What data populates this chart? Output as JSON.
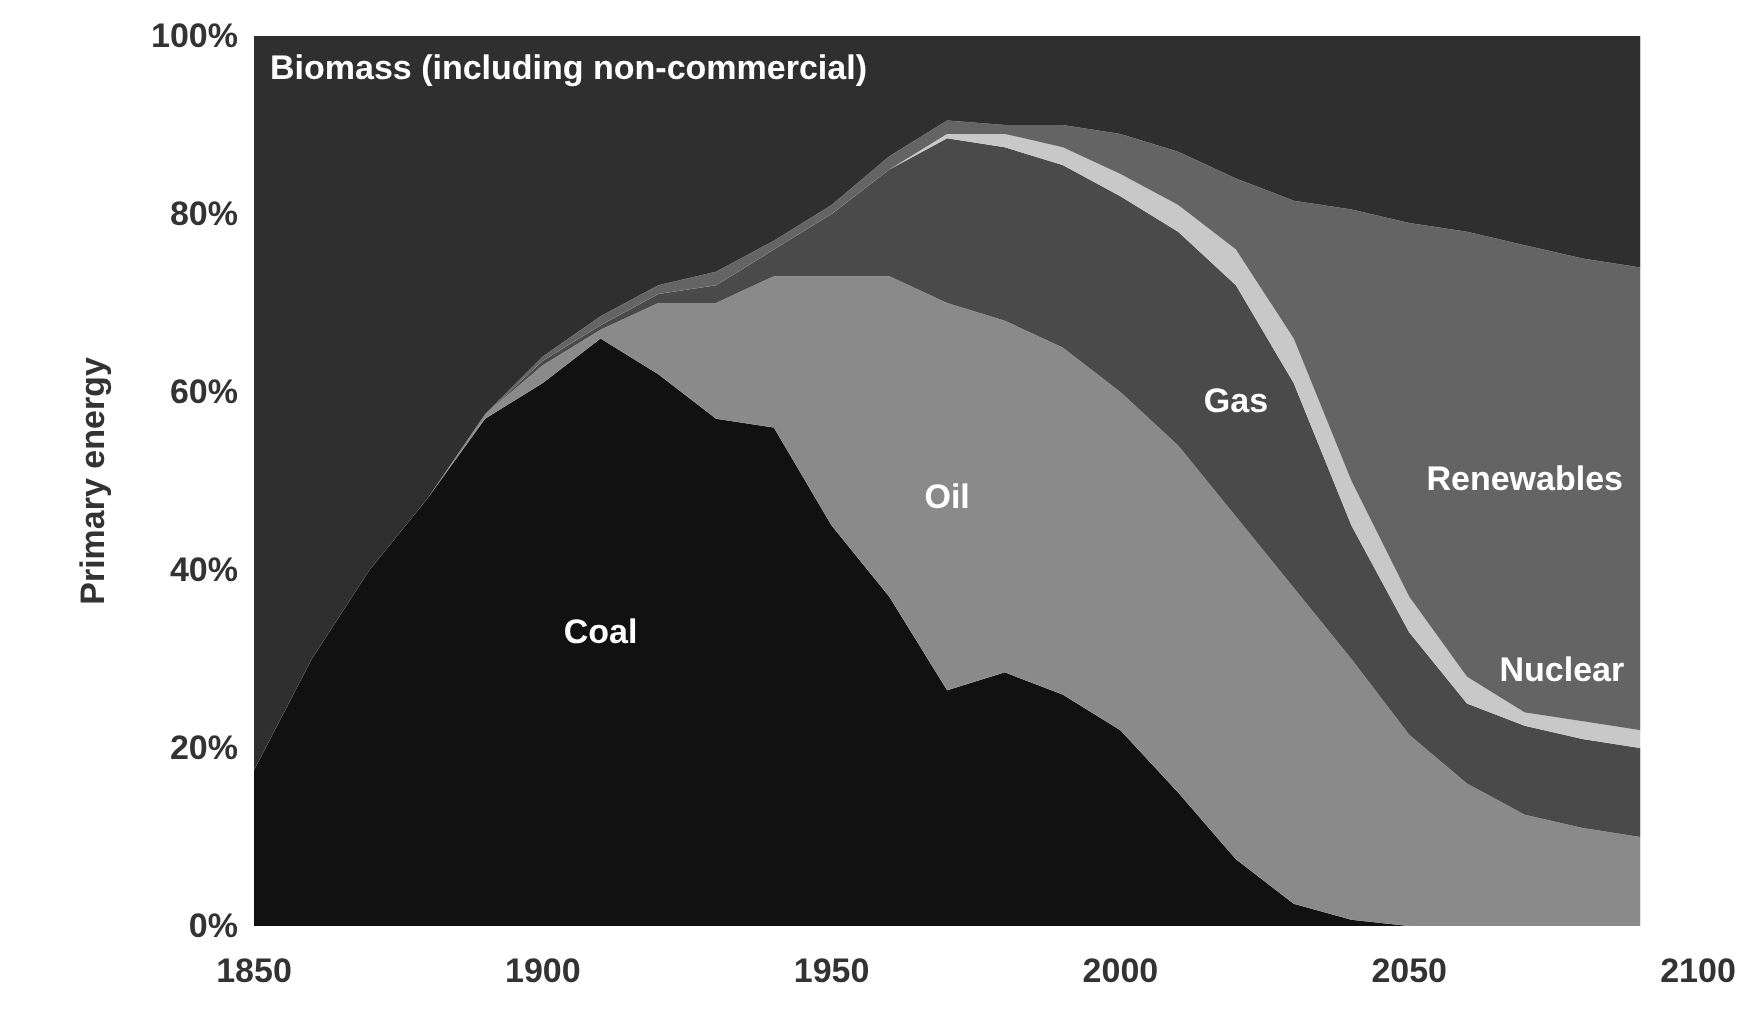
{
  "chart_data": {
    "type": "area",
    "stacked": true,
    "ylabel": "Primary energy",
    "x": [
      1850,
      1860,
      1870,
      1880,
      1890,
      1900,
      1910,
      1920,
      1930,
      1940,
      1950,
      1960,
      1970,
      1980,
      1990,
      2000,
      2010,
      2020,
      2030,
      2040,
      2050,
      2060,
      2070,
      2080,
      2090
    ],
    "xlim": [
      1850,
      2100
    ],
    "xticks": [
      1850,
      1900,
      1950,
      2000,
      2050,
      2100
    ],
    "ylim": [
      0,
      100
    ],
    "yticks": [
      {
        "value": 0,
        "label": "0%"
      },
      {
        "value": 20,
        "label": "20%"
      },
      {
        "value": 40,
        "label": "40%"
      },
      {
        "value": 60,
        "label": "60%"
      },
      {
        "value": 80,
        "label": "80%"
      },
      {
        "value": 100,
        "label": "100%"
      }
    ],
    "grid": false,
    "legend": false,
    "series": [
      {
        "name": "Coal",
        "color": "#111111",
        "values": [
          17.5,
          30,
          40,
          48,
          57,
          61,
          66,
          62,
          57,
          56,
          45,
          37,
          26.5,
          28.5,
          26,
          22,
          15,
          7.5,
          2.5,
          0.7,
          0,
          0,
          0,
          0,
          0
        ]
      },
      {
        "name": "Oil",
        "color": "#8a8a8a",
        "values": [
          0,
          0,
          0,
          0,
          0.5,
          2,
          1,
          8,
          13,
          17,
          28,
          36,
          43.5,
          39.5,
          39,
          38,
          39,
          38.5,
          35.5,
          29.3,
          21.5,
          16,
          12.5,
          11,
          10
        ]
      },
      {
        "name": "Gas",
        "color": "#4a4a4a",
        "values": [
          0,
          0,
          0,
          0,
          0,
          0.5,
          0.5,
          1,
          2,
          3,
          7,
          12,
          18.5,
          19.5,
          20.5,
          22,
          24,
          26,
          23,
          15,
          11.5,
          9,
          10,
          10,
          10
        ]
      },
      {
        "name": "Nuclear",
        "color": "#c8c8c8",
        "values": [
          0,
          0,
          0,
          0,
          0,
          0,
          0,
          0,
          0,
          0,
          0,
          0,
          0.5,
          1.5,
          2,
          2.5,
          3,
          4,
          5,
          5,
          4,
          3,
          1.5,
          2,
          2
        ]
      },
      {
        "name": "Renewables",
        "color": "#646464",
        "values": [
          0,
          0,
          0,
          0,
          0,
          0.5,
          1,
          1,
          1.5,
          1,
          1,
          1.5,
          1.5,
          1,
          2.5,
          4.5,
          6,
          8,
          15.5,
          30.5,
          42,
          50,
          52.5,
          52,
          52
        ]
      },
      {
        "name": "Biomass (including non-commercial)",
        "color": "#2f2f2f",
        "values": [
          82.5,
          70,
          60,
          52,
          42.5,
          36,
          31.5,
          28,
          26.5,
          23,
          19,
          13.5,
          9.5,
          10,
          10,
          11,
          13,
          16,
          18.5,
          19.5,
          21,
          22,
          23.5,
          25,
          26
        ]
      }
    ]
  }
}
